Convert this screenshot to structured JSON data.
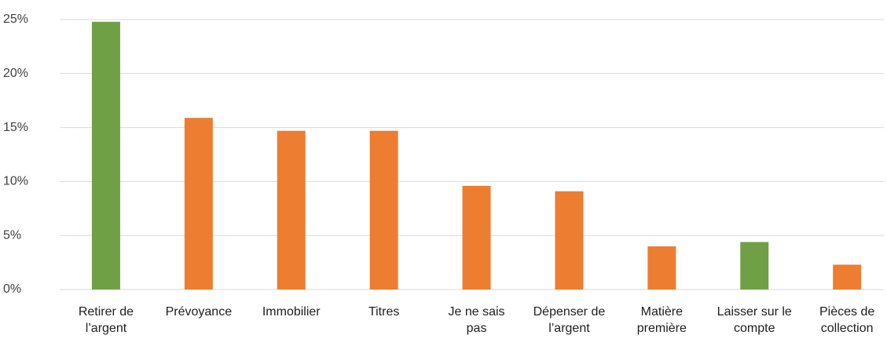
{
  "chart_data": {
    "type": "bar",
    "categories": [
      "Retirer de l’argent",
      "Prévoyance",
      "Immobilier",
      "Titres",
      "Je ne sais pas",
      "Dépenser de l’argent",
      "Matière première",
      "Laisser sur le compte",
      "Pièces de collection"
    ],
    "values": [
      24.8,
      15.9,
      14.7,
      14.7,
      9.6,
      9.1,
      4.0,
      4.4,
      2.3
    ],
    "colors": [
      "#70a046",
      "#ed7d31",
      "#ed7d31",
      "#ed7d31",
      "#ed7d31",
      "#ed7d31",
      "#ed7d31",
      "#70a046",
      "#ed7d31"
    ],
    "ylim": [
      0,
      25
    ],
    "yticks": [
      {
        "value": 0,
        "label": "0%"
      },
      {
        "value": 5,
        "label": "5%"
      },
      {
        "value": 10,
        "label": "10%"
      },
      {
        "value": 15,
        "label": "15%"
      },
      {
        "value": 20,
        "label": "20%"
      },
      {
        "value": 25,
        "label": "25%"
      }
    ],
    "grid": true
  }
}
